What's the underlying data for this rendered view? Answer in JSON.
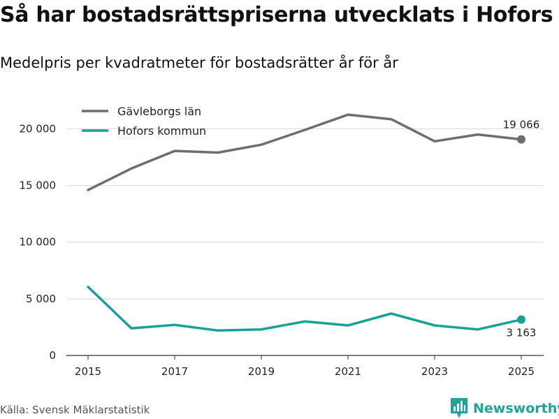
{
  "header": {
    "title": "Så har bostadsrättspriserna utvecklats i Hofors",
    "subtitle": "Medelpris per kvadratmeter för bostadsrätter år för år"
  },
  "footer": {
    "source": "Källa: Svensk Mäklarstatistik",
    "brand": "Newsworthy",
    "brand_icon": "newsworthy-logo-icon"
  },
  "colors": {
    "gavleborg": "#6e6d73",
    "hofors": "#19a198",
    "grid": "#dddddd",
    "axis": "#333333"
  },
  "chart_data": {
    "type": "line",
    "title": "Så har bostadsrättspriserna utvecklats i Hofors",
    "subtitle": "Medelpris per kvadratmeter för bostadsrätter år för år",
    "xlabel": "",
    "ylabel": "",
    "x": [
      2015,
      2016,
      2017,
      2018,
      2019,
      2020,
      2021,
      2022,
      2023,
      2024,
      2025
    ],
    "xticks": [
      2015,
      2017,
      2019,
      2021,
      2023,
      2025
    ],
    "xtick_labels": [
      "2015",
      "2017",
      "2019",
      "2021",
      "2023",
      "2025"
    ],
    "ylim": [
      0,
      22000
    ],
    "yticks": [
      0,
      5000,
      10000,
      15000,
      20000
    ],
    "ytick_labels": [
      "0",
      "5 000",
      "10 000",
      "15 000",
      "20 000"
    ],
    "grid": true,
    "legend_position": "top-left",
    "series": [
      {
        "name": "Gävleborgs län",
        "color": "#6e6d73",
        "values": [
          14600,
          16500,
          18050,
          17900,
          18600,
          19900,
          21250,
          20850,
          18900,
          19500,
          19066
        ],
        "end_label": "19 066",
        "end_label_position": "above"
      },
      {
        "name": "Hofors kommun",
        "color": "#19a198",
        "values": [
          6050,
          2400,
          2700,
          2200,
          2300,
          3000,
          2650,
          3700,
          2650,
          2300,
          3163
        ],
        "end_label": "3 163",
        "end_label_position": "below"
      }
    ]
  }
}
